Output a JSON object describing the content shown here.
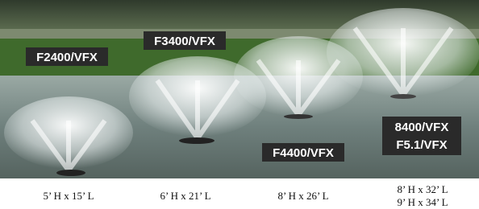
{
  "labels": [
    "F2400/VFX",
    "F3400/VFX",
    "F4400/VFX",
    [
      "8400/VFX",
      "F5.1/VFX"
    ]
  ],
  "dimensions": [
    [
      "5’ H x 15’ L"
    ],
    [
      "6’ H x 21’ L"
    ],
    [
      "8’ H x 26’ L"
    ],
    [
      "8’ H x 32’ L",
      "9’ H x 34’ L"
    ]
  ]
}
